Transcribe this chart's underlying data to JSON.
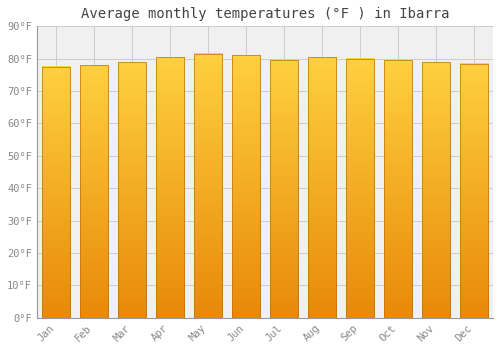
{
  "title": "Average monthly temperatures (°F ) in Ibarra",
  "months": [
    "Jan",
    "Feb",
    "Mar",
    "Apr",
    "May",
    "Jun",
    "Jul",
    "Aug",
    "Sep",
    "Oct",
    "Nov",
    "Dec"
  ],
  "values": [
    77.5,
    78.0,
    79.0,
    80.5,
    81.5,
    81.0,
    79.5,
    80.5,
    80.0,
    79.5,
    79.0,
    78.5
  ],
  "bar_color_bottom": "#E8890A",
  "bar_color_top": "#FFD040",
  "bar_edge_color": "#C07010",
  "background_color": "#FFFFFF",
  "plot_bg_color": "#F0F0F0",
  "grid_color": "#CCCCCC",
  "ylim": [
    0,
    90
  ],
  "yticks": [
    0,
    10,
    20,
    30,
    40,
    50,
    60,
    70,
    80,
    90
  ],
  "ytick_labels": [
    "0°F",
    "10°F",
    "20°F",
    "30°F",
    "40°F",
    "50°F",
    "60°F",
    "70°F",
    "80°F",
    "90°F"
  ],
  "title_fontsize": 10,
  "tick_fontsize": 7.5,
  "tick_font_color": "#888888",
  "title_font_color": "#444444",
  "bar_width": 0.75
}
